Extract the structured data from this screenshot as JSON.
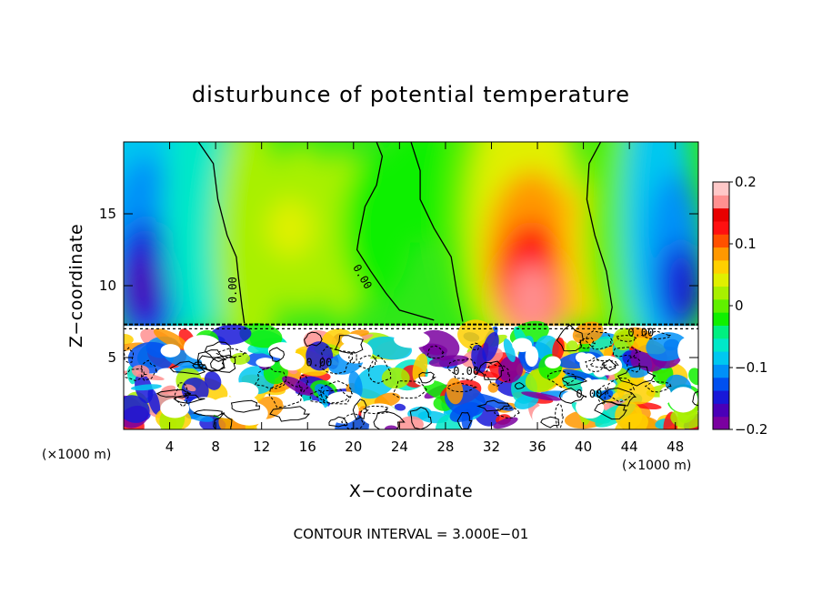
{
  "chart_data": {
    "type": "heatmap",
    "title": "disturbunce of potential temperature",
    "xlabel": "X−coordinate",
    "ylabel": "Z−coordinate",
    "x_unit_label": "(×1000 m)",
    "x_unit_label_right": "(×1000 m)",
    "x_ticks": [
      4,
      8,
      12,
      16,
      20,
      24,
      28,
      32,
      36,
      40,
      44,
      48
    ],
    "y_ticks": [
      5,
      10,
      15
    ],
    "xlim": [
      0,
      50
    ],
    "ylim": [
      0,
      20
    ],
    "colorbar": {
      "range": [
        -0.2,
        0.2
      ],
      "tick_values": [
        0.2,
        0.1,
        0,
        -0.1,
        -0.2
      ],
      "tick_labels": [
        "0.2",
        "0.1",
        "0",
        "−0.1",
        "−0.2"
      ],
      "colors": [
        "#7a00a0",
        "#4a00b8",
        "#1818d8",
        "#0050f0",
        "#0090f8",
        "#00c8f0",
        "#00e8c8",
        "#00f080",
        "#10f000",
        "#60f000",
        "#a8f000",
        "#e0f000",
        "#ffd000",
        "#ff9800",
        "#ff5000",
        "#ff1010",
        "#e80000",
        "#ff9090",
        "#ffc8c8"
      ]
    },
    "contour_labels": [
      "0.00",
      "0.00",
      "0.00",
      "0.00",
      "0.00",
      "0.00"
    ],
    "contour_interval_text": "CONTOUR INTERVAL = 3.000E−01",
    "grid": false,
    "legend": "right colorbar"
  }
}
